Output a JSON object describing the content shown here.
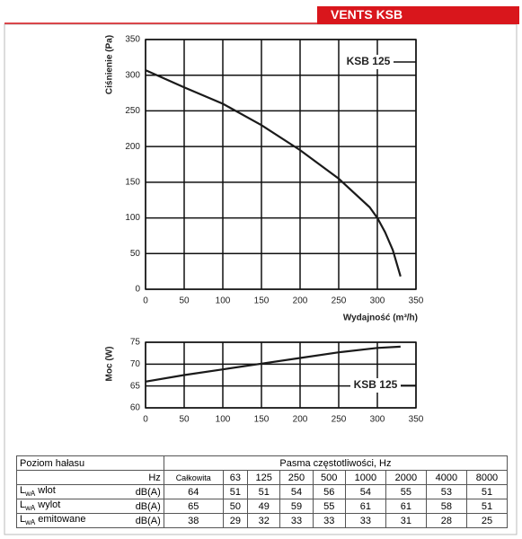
{
  "header": {
    "title": "VENTS KSB"
  },
  "chart_data": [
    {
      "type": "line",
      "y_label": "Ciśnienie (Pa)",
      "x_label": "Wydajność (m³/h)",
      "annotation": "KSB 125",
      "x": [
        0,
        50,
        100,
        150,
        200,
        250,
        290,
        300,
        310,
        320,
        330
      ],
      "values": [
        307,
        283,
        260,
        230,
        195,
        155,
        115,
        100,
        80,
        55,
        18
      ],
      "color": "#1a1a1a",
      "xlim": [
        0,
        350
      ],
      "xticks": [
        0,
        50,
        100,
        150,
        200,
        250,
        300,
        350
      ],
      "ylim": [
        0,
        350
      ],
      "yticks": [
        0,
        50,
        100,
        150,
        200,
        250,
        300,
        350
      ],
      "grid": true
    },
    {
      "type": "line",
      "y_label": "Moc (W)",
      "annotation": "KSB 125",
      "x": [
        0,
        50,
        100,
        150,
        200,
        250,
        300,
        330
      ],
      "values": [
        66,
        67.5,
        68.8,
        70.1,
        71.4,
        72.7,
        73.7,
        74
      ],
      "color": "#1a1a1a",
      "xlim": [
        0,
        350
      ],
      "xticks": [
        0,
        50,
        100,
        150,
        200,
        250,
        300,
        350
      ],
      "ylim": [
        60,
        75
      ],
      "yticks": [
        60,
        65,
        70,
        75
      ],
      "grid": true
    }
  ],
  "table": {
    "title": "Poziom hałasu",
    "group_header": "Pasma częstotliwości, Hz",
    "unit_header": "Hz",
    "columns": [
      "Całkowita",
      "63",
      "125",
      "250",
      "500",
      "1000",
      "2000",
      "4000",
      "8000"
    ],
    "rows": [
      {
        "symbol": "L",
        "subscript": "wA",
        "label": "wlot",
        "unit": "dB(A)",
        "values": [
          "64",
          "51",
          "51",
          "54",
          "56",
          "54",
          "55",
          "53",
          "51"
        ]
      },
      {
        "symbol": "L",
        "subscript": "wA",
        "label": "wylot",
        "unit": "dB(A)",
        "values": [
          "65",
          "50",
          "49",
          "59",
          "55",
          "61",
          "61",
          "58",
          "51"
        ]
      },
      {
        "symbol": "L",
        "subscript": "wA",
        "label": "emitowane",
        "unit": "dB(A)",
        "values": [
          "38",
          "29",
          "32",
          "33",
          "33",
          "33",
          "31",
          "28",
          "25"
        ]
      }
    ]
  }
}
